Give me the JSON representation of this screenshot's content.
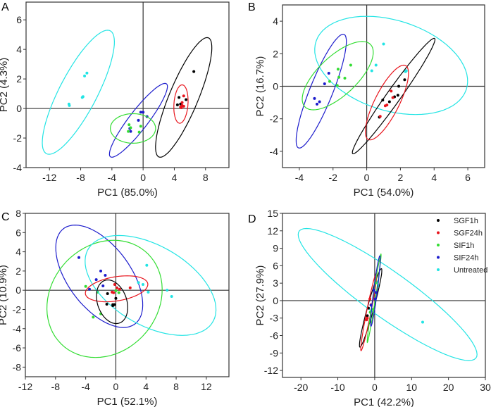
{
  "colors": {
    "SGF1h": "#000000",
    "SGF24h": "#e8141c",
    "SIF1h": "#33dd33",
    "SIF24h": "#1c1ccc",
    "Untreated": "#22e4e4"
  },
  "legend": {
    "entries": [
      "SGF1h",
      "SGF24h",
      "SIF1h",
      "SIF24h",
      "Untreated"
    ],
    "placement": "top-right",
    "panel": "D"
  },
  "chart_data": [
    {
      "type": "scatter",
      "panel": "A",
      "xlabel": "PC1 (85.0%)",
      "ylabel": "PC2 (4.3%)",
      "xlim": [
        -15,
        11
      ],
      "ylim": [
        -4,
        7.2
      ],
      "xticks": [
        -12,
        -8,
        -4,
        0,
        4,
        8
      ],
      "yticks": [
        -4,
        -2,
        0,
        2,
        4,
        6
      ],
      "series": [
        {
          "name": "Untreated",
          "points": [
            [
              -7.2,
              2.4
            ],
            [
              -7.5,
              2.2
            ],
            [
              -7.7,
              0.8
            ],
            [
              -7.8,
              0.75
            ],
            [
              -9.5,
              0.3
            ],
            [
              -9.45,
              0.2
            ]
          ],
          "ellipse": {
            "center": [
              -8.3,
              1.1
            ],
            "axis1": [
              3.75,
              4.2
            ],
            "axis2": [
              2.7,
              0
            ]
          }
        },
        {
          "name": "SGF1h",
          "points": [
            [
              6.5,
              2.5
            ],
            [
              4.6,
              0.75
            ],
            [
              5.5,
              0.6
            ],
            [
              4.4,
              0.25
            ],
            [
              4.8,
              0.3
            ]
          ],
          "ellipse": {
            "center": [
              5.2,
              0.75
            ],
            "axis1": [
              3.0,
              4.05
            ],
            "axis2": [
              2.0,
              0
            ]
          }
        },
        {
          "name": "SGF24h",
          "points": [
            [
              5.2,
              0.85
            ],
            [
              5.0,
              0.4
            ],
            [
              4.8,
              0.1
            ],
            [
              5.2,
              0.15
            ],
            [
              4.9,
              0.05
            ],
            [
              5.0,
              0.2
            ]
          ],
          "ellipse": {
            "center": [
              4.85,
              0.3
            ],
            "axis1": [
              0.15,
              1.3
            ],
            "axis2": [
              0.9,
              0
            ]
          }
        },
        {
          "name": "SIF24h",
          "points": [
            [
              -0.3,
              -0.25
            ],
            [
              0.0,
              -0.25
            ],
            [
              0.5,
              -0.55
            ],
            [
              -0.6,
              -0.8
            ],
            [
              -1.7,
              -1.35
            ],
            [
              -1.6,
              -1.55
            ]
          ],
          "ellipse": {
            "center": [
              -0.6,
              -0.8
            ],
            "axis1": [
              3.4,
              2.5
            ],
            "axis2": [
              1.5,
              0
            ]
          }
        },
        {
          "name": "SIF1h",
          "points": [
            [
              -1.8,
              -1.1
            ],
            [
              -1.6,
              -1.3
            ],
            [
              -1.9,
              -1.55
            ],
            [
              -0.3,
              -1.2
            ],
            [
              -0.5,
              -1.6
            ]
          ],
          "ellipse": {
            "center": [
              -1.3,
              -1.35
            ],
            "axis1": [
              0,
              1.0
            ],
            "axis2": [
              2.9,
              0
            ]
          }
        }
      ]
    },
    {
      "type": "scatter",
      "panel": "B",
      "xlabel": "PC1 (54.0%)",
      "ylabel": "PC2 (16.7%)",
      "xlim": [
        -5,
        7
      ],
      "ylim": [
        -5,
        5
      ],
      "xticks": [
        -4,
        -2,
        0,
        2,
        4,
        6
      ],
      "yticks": [
        -4,
        -2,
        0,
        2,
        4
      ],
      "series": [
        {
          "name": "Untreated",
          "points": [
            [
              1.0,
              2.6
            ],
            [
              0.55,
              1.3
            ],
            [
              0.3,
              0.95
            ],
            [
              2.35,
              0.95
            ],
            [
              2.3,
              0.9
            ]
          ],
          "ellipse": {
            "center": [
              1.45,
              1.28
            ],
            "axis1": [
              -1.45,
              3.02
            ],
            "axis2": [
              4.3,
              0
            ]
          }
        },
        {
          "name": "SIF24h",
          "points": [
            [
              -2.25,
              0.8
            ],
            [
              -2.5,
              0.15
            ],
            [
              -3.1,
              -0.75
            ],
            [
              -2.95,
              -1.1
            ],
            [
              -2.8,
              -0.95
            ]
          ],
          "ellipse": {
            "center": [
              -2.7,
              -0.3
            ],
            "axis1": [
              1.3,
              3.5
            ],
            "axis2": [
              0.73,
              0
            ]
          }
        },
        {
          "name": "SIF1h",
          "points": [
            [
              -0.95,
              1.3
            ],
            [
              -1.7,
              1.05
            ],
            [
              -1.65,
              0.55
            ],
            [
              -1.3,
              0.5
            ],
            [
              -2.2,
              0.3
            ],
            [
              -1.75,
              0.05
            ]
          ],
          "ellipse": {
            "center": [
              -1.72,
              0.65
            ],
            "axis1": [
              1.45,
              2.1
            ],
            "axis2": [
              1.53,
              0
            ]
          }
        },
        {
          "name": "SGF1h",
          "points": [
            [
              2.25,
              0.4
            ],
            [
              1.9,
              0
            ],
            [
              1.85,
              -0.55
            ],
            [
              1.65,
              -0.65
            ],
            [
              1.35,
              -0.95
            ],
            [
              0.95,
              -0.85
            ],
            [
              0.75,
              -1.9
            ]
          ],
          "ellipse": {
            "center": [
              1.6,
              -0.6
            ],
            "axis1": [
              2.4,
              3.55
            ],
            "axis2": [
              0.5,
              0
            ]
          }
        },
        {
          "name": "SGF24h",
          "points": [
            [
              1.45,
              -0.3
            ],
            [
              1.55,
              -0.7
            ],
            [
              1.2,
              -1.15
            ],
            [
              1.1,
              -1.2
            ],
            [
              0.8,
              -1.85
            ]
          ],
          "ellipse": {
            "center": [
              1.2,
              -1.0
            ],
            "axis1": [
              1.0,
              2.3
            ],
            "axis2": [
              0.8,
              0
            ]
          }
        }
      ]
    },
    {
      "type": "scatter",
      "panel": "C",
      "xlabel": "PC1 (52.1%)",
      "ylabel": "PC2 (10.9%)",
      "xlim": [
        -12,
        15
      ],
      "ylim": [
        -9,
        8
      ],
      "xticks": [
        -12,
        -8,
        -4,
        0,
        4,
        8,
        12
      ],
      "yticks": [
        -8,
        -6,
        -4,
        -2,
        0,
        2,
        4,
        6,
        8
      ],
      "series": [
        {
          "name": "SIF24h",
          "points": [
            [
              -4.9,
              3.4
            ],
            [
              -2.0,
              2.0
            ],
            [
              -1.4,
              1.55
            ],
            [
              -2.6,
              1.1
            ],
            [
              -1.7,
              0.45
            ],
            [
              -3.5,
              0.1
            ]
          ],
          "ellipse": {
            "center": [
              -2.2,
              1.45
            ],
            "axis1": [
              -3.2,
              5.33
            ],
            "axis2": [
              4.8,
              0
            ]
          }
        },
        {
          "name": "SIF1h",
          "points": [
            [
              -4.0,
              0.4
            ],
            [
              -2.4,
              -0.2
            ],
            [
              0.4,
              -0.25
            ],
            [
              0.0,
              -0.05
            ],
            [
              -3.0,
              -2.8
            ],
            [
              -2.0,
              -2.45
            ]
          ],
          "ellipse": {
            "center": [
              -1.5,
              -0.9
            ],
            "axis1": [
              1.2,
              6.1
            ],
            "axis2": [
              7.55,
              0
            ]
          }
        },
        {
          "name": "Untreated",
          "points": [
            [
              4.1,
              2.6
            ],
            [
              3.0,
              0.8
            ],
            [
              3.6,
              0.6
            ],
            [
              4.3,
              -0.2
            ],
            [
              6.8,
              0
            ],
            [
              7.4,
              -0.65
            ]
          ],
          "ellipse": {
            "center": [
              4.6,
              0.5
            ],
            "axis1": [
              -4.2,
              5.2
            ],
            "axis2": [
              7.6,
              0
            ]
          }
        },
        {
          "name": "SGF24h",
          "points": [
            [
              -0.15,
              0.6
            ],
            [
              0.15,
              0.25
            ],
            [
              0.5,
              0.1
            ],
            [
              1.9,
              0.25
            ],
            [
              -0.5,
              -0.2
            ],
            [
              -0.3,
              -0.25
            ]
          ],
          "ellipse": {
            "center": [
              0.1,
              0.15
            ],
            "axis1": [
              1.4,
              1.35
            ],
            "axis2": [
              3.9,
              0
            ]
          }
        },
        {
          "name": "SGF1h",
          "points": [
            [
              -1.1,
              -0.35
            ],
            [
              0.0,
              -0.85
            ],
            [
              -1.2,
              -1.45
            ],
            [
              -0.4,
              -1.6
            ],
            [
              -0.2,
              -1.5
            ],
            [
              -0.4,
              -1.5
            ]
          ],
          "ellipse": {
            "center": [
              -0.5,
              -1.2
            ],
            "axis1": [
              -0.55,
              2.27
            ],
            "axis2": [
              2.0,
              0
            ]
          }
        }
      ]
    },
    {
      "type": "scatter",
      "panel": "D",
      "xlabel": "PC1 (42.2%)",
      "ylabel": "PC2 (27.9%)",
      "xlim": [
        -25,
        30
      ],
      "ylim": [
        -13.2,
        15
      ],
      "xticks": [
        -20,
        -10,
        0,
        10,
        20,
        30
      ],
      "yticks": [
        -12,
        -9,
        -6,
        -3,
        0,
        3,
        6,
        9,
        12,
        15
      ],
      "series": [
        {
          "name": "Untreated",
          "points": [
            [
              13,
              -3.7
            ],
            [
              1.0,
              2.6
            ],
            [
              0.7,
              3.2
            ]
          ],
          "ellipse": {
            "center": [
              3.5,
              1.05
            ],
            "axis1": [
              -22,
              11.35
            ],
            "axis2": [
              10.2,
              0
            ]
          }
        },
        {
          "name": "SGF1h",
          "points": [
            [
              -1.7,
              -1.3
            ],
            [
              -2.0,
              -2.6
            ]
          ],
          "ellipse": {
            "center": [
              -1.1,
              -1.25
            ],
            "axis1": [
              2.9,
              6.75
            ],
            "axis2": [
              0.9,
              0
            ]
          }
        },
        {
          "name": "SGF24h",
          "points": [
            [
              -2.2,
              -3.3
            ],
            [
              -2.0,
              -3.0
            ],
            [
              -1.3,
              0.3
            ],
            [
              -1.0,
              -0.7
            ]
          ],
          "ellipse": {
            "center": [
              -1.6,
              -1.9
            ],
            "axis1": [
              2.1,
              6.7
            ],
            "axis2": [
              0.6,
              0
            ]
          }
        },
        {
          "name": "SIF1h",
          "points": [
            [
              -0.5,
              -1.5
            ],
            [
              0.2,
              3.0
            ],
            [
              -1.2,
              -2.0
            ]
          ],
          "ellipse": {
            "center": [
              -0.15,
              0.4
            ],
            "axis1": [
              1.85,
              7.6
            ],
            "axis2": [
              0.35,
              0
            ]
          }
        },
        {
          "name": "SIF24h",
          "points": [
            [
              0.3,
              1.4
            ],
            [
              -0.2,
              1.8
            ],
            [
              0.1,
              0.3
            ],
            [
              -1.0,
              -0.8
            ]
          ],
          "ellipse": {
            "center": [
              0.2,
              1.65
            ],
            "axis1": [
              1.2,
              6.05
            ],
            "axis2": [
              0.5,
              0
            ]
          }
        }
      ]
    }
  ]
}
